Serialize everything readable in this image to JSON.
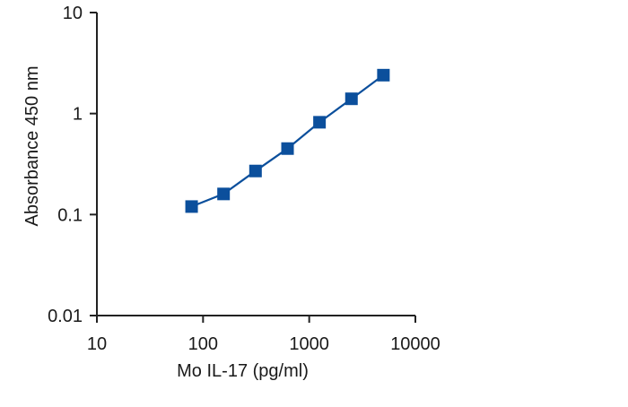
{
  "chart_data": {
    "type": "line",
    "title": "",
    "xlabel": "Mo IL-17 (pg/ml)",
    "ylabel": "Absorbance 450 nm",
    "x_scale": "log",
    "y_scale": "log",
    "xlim": [
      10,
      10000
    ],
    "ylim": [
      0.01,
      10
    ],
    "x_ticks": [
      "10",
      "100",
      "1000",
      "10000"
    ],
    "y_ticks": [
      "0.01",
      "0.1",
      "1",
      "10"
    ],
    "grid": false,
    "legend": "none",
    "series": [
      {
        "x": [
          78,
          156,
          312,
          625,
          1250,
          2500,
          5000
        ],
        "y": [
          0.12,
          0.16,
          0.27,
          0.45,
          0.82,
          1.4,
          2.4
        ],
        "marker": "square",
        "color": "#0b4f9c"
      }
    ]
  }
}
